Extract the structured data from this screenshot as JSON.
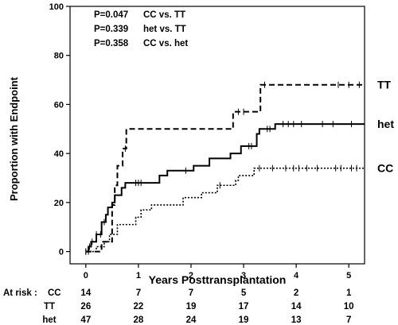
{
  "chart_data": {
    "type": "line",
    "step": true,
    "xlabel": "Years Posttransplantation",
    "ylabel": "Proportion with Endpoint",
    "xlim": [
      -0.3,
      5.3
    ],
    "ylim": [
      -5,
      100
    ],
    "xticks": [
      0,
      1,
      2,
      3,
      4,
      5
    ],
    "yticks": [
      0,
      20,
      40,
      60,
      80,
      100
    ],
    "grid": false,
    "pvalues": [
      {
        "p": "P=0.047",
        "comparison": "CC vs. TT"
      },
      {
        "p": "P=0.339",
        "comparison": "het vs. TT"
      },
      {
        "p": "P=0.358",
        "comparison": "CC vs. het"
      }
    ],
    "series": [
      {
        "name": "TT",
        "style": "dashed",
        "points": [
          [
            0,
            0
          ],
          [
            0.3,
            0
          ],
          [
            0.3,
            4
          ],
          [
            0.5,
            4
          ],
          [
            0.5,
            19
          ],
          [
            0.55,
            19
          ],
          [
            0.55,
            27
          ],
          [
            0.6,
            27
          ],
          [
            0.6,
            35
          ],
          [
            0.7,
            35
          ],
          [
            0.7,
            42
          ],
          [
            0.77,
            42
          ],
          [
            0.77,
            50
          ],
          [
            2.8,
            50
          ],
          [
            2.8,
            57
          ],
          [
            3.32,
            57
          ],
          [
            3.32,
            68
          ],
          [
            5.3,
            68
          ]
        ],
        "censor_x": [
          0.75,
          2.9,
          3.0,
          3.4,
          4.8,
          5.0,
          5.2
        ]
      },
      {
        "name": "het",
        "style": "solid",
        "points": [
          [
            0,
            0
          ],
          [
            0.05,
            0
          ],
          [
            0.05,
            2
          ],
          [
            0.1,
            2
          ],
          [
            0.1,
            4
          ],
          [
            0.2,
            4
          ],
          [
            0.2,
            7
          ],
          [
            0.3,
            7
          ],
          [
            0.3,
            12
          ],
          [
            0.38,
            12
          ],
          [
            0.38,
            15
          ],
          [
            0.42,
            15
          ],
          [
            0.42,
            18
          ],
          [
            0.5,
            18
          ],
          [
            0.5,
            20
          ],
          [
            0.55,
            20
          ],
          [
            0.55,
            23
          ],
          [
            0.68,
            23
          ],
          [
            0.68,
            26
          ],
          [
            0.75,
            26
          ],
          [
            0.75,
            28
          ],
          [
            1.4,
            28
          ],
          [
            1.4,
            31
          ],
          [
            1.55,
            31
          ],
          [
            1.55,
            33
          ],
          [
            2.05,
            33
          ],
          [
            2.05,
            35
          ],
          [
            2.35,
            35
          ],
          [
            2.35,
            38
          ],
          [
            2.75,
            38
          ],
          [
            2.75,
            40
          ],
          [
            2.95,
            40
          ],
          [
            2.95,
            43
          ],
          [
            3.25,
            43
          ],
          [
            3.25,
            48
          ],
          [
            3.3,
            48
          ],
          [
            3.3,
            50
          ],
          [
            3.6,
            50
          ],
          [
            3.6,
            52
          ],
          [
            5.3,
            52
          ]
        ],
        "censor_x": [
          0.0,
          0.07,
          0.12,
          0.2,
          0.28,
          0.35,
          0.95,
          1.0,
          1.05,
          1.9,
          3.1,
          3.15,
          3.45,
          3.5,
          3.75,
          3.85,
          3.95,
          4.1,
          4.5,
          4.7,
          5.05
        ]
      },
      {
        "name": "CC",
        "style": "dotted",
        "points": [
          [
            0,
            0
          ],
          [
            0.2,
            0
          ],
          [
            0.2,
            2
          ],
          [
            0.35,
            2
          ],
          [
            0.35,
            4
          ],
          [
            0.45,
            4
          ],
          [
            0.45,
            7
          ],
          [
            0.6,
            7
          ],
          [
            0.6,
            11
          ],
          [
            0.95,
            11
          ],
          [
            0.95,
            14
          ],
          [
            1.05,
            14
          ],
          [
            1.05,
            17
          ],
          [
            1.25,
            17
          ],
          [
            1.25,
            19
          ],
          [
            1.85,
            19
          ],
          [
            1.85,
            22
          ],
          [
            2.2,
            22
          ],
          [
            2.2,
            24
          ],
          [
            2.5,
            24
          ],
          [
            2.5,
            27
          ],
          [
            2.85,
            27
          ],
          [
            2.85,
            29
          ],
          [
            2.9,
            29
          ],
          [
            2.9,
            31
          ],
          [
            3.2,
            31
          ],
          [
            3.2,
            34
          ],
          [
            5.3,
            34
          ]
        ],
        "censor_x": [
          0.0,
          0.05,
          2.55,
          3.3,
          3.55,
          3.8,
          3.95,
          4.05,
          4.2,
          4.4,
          4.75,
          4.85,
          5.05,
          5.15
        ]
      }
    ],
    "at_risk": {
      "label": "At risk :",
      "times": [
        0,
        1,
        2,
        3,
        4,
        5
      ],
      "rows": [
        {
          "group": "CC",
          "counts": [
            "14",
            "7",
            "7",
            "5",
            "2",
            "1"
          ]
        },
        {
          "group": "TT",
          "counts": [
            "26",
            "22",
            "19",
            "17",
            "14",
            "10"
          ]
        },
        {
          "group": "het",
          "counts": [
            "47",
            "28",
            "24",
            "19",
            "13",
            "7"
          ]
        }
      ]
    }
  }
}
